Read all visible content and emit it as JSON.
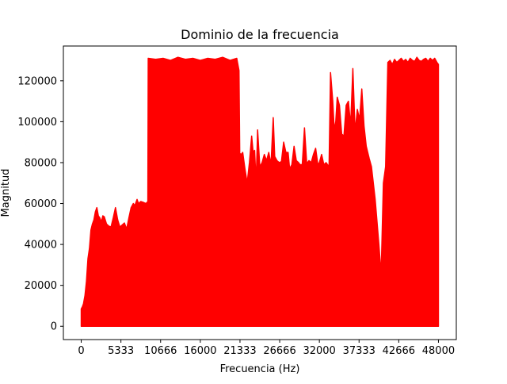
{
  "chart_data": {
    "type": "area",
    "title": "Dominio de la frecuencia",
    "xlabel": "Frecuencia (Hz)",
    "ylabel": "Magnitud",
    "xlim": [
      -2400,
      50400
    ],
    "ylim": [
      -6500,
      137000
    ],
    "xticks": [
      0,
      5333,
      10666,
      16000,
      21333,
      26666,
      32000,
      37333,
      42666,
      48000
    ],
    "xtick_labels": [
      "0",
      "5333",
      "10666",
      "16000",
      "21333",
      "26666",
      "32000",
      "37333",
      "42666",
      "48000"
    ],
    "yticks": [
      0,
      20000,
      40000,
      60000,
      80000,
      100000,
      120000
    ],
    "ytick_labels": [
      "0",
      "20000",
      "40000",
      "60000",
      "80000",
      "100000",
      "120000"
    ],
    "grid": false,
    "legend": "none",
    "series": [
      {
        "color": "#ff0000",
        "x": [
          0,
          150,
          300,
          500,
          700,
          900,
          1100,
          1300,
          1500,
          1700,
          1900,
          2100,
          2300,
          2500,
          2700,
          2900,
          3100,
          3400,
          3700,
          4000,
          4300,
          4600,
          4900,
          5200,
          5500,
          5800,
          6100,
          6400,
          6700,
          7000,
          7200,
          7500,
          7700,
          8000,
          8400,
          8700,
          8950,
          9000,
          10000,
          11000,
          12000,
          13000,
          14000,
          15000,
          16000,
          17000,
          18000,
          19000,
          20000,
          20900,
          21200,
          21300,
          21500,
          21700,
          22000,
          22300,
          22600,
          22900,
          23100,
          23300,
          23500,
          23700,
          24000,
          24300,
          24600,
          24900,
          25200,
          25500,
          25800,
          26000,
          26300,
          26600,
          26900,
          27200,
          27500,
          27800,
          28000,
          28300,
          28600,
          28900,
          29200,
          29400,
          29700,
          30000,
          30300,
          30600,
          30900,
          31200,
          31500,
          31800,
          32000,
          32300,
          32600,
          32900,
          33300,
          33500,
          33800,
          34000,
          34200,
          34400,
          34700,
          35000,
          35300,
          35600,
          35900,
          36200,
          36500,
          36800,
          37100,
          37400,
          37700,
          38000,
          38300,
          38700,
          39000,
          39500,
          40000,
          40300,
          40600,
          40900,
          41200,
          41500,
          41800,
          42100,
          42400,
          42700,
          43000,
          43300,
          43600,
          43900,
          44200,
          44500,
          44800,
          45100,
          45400,
          45700,
          46000,
          46300,
          46600,
          46900,
          47200,
          47500,
          47800,
          48000
        ],
        "values": [
          8500,
          9500,
          11000,
          15000,
          22000,
          33000,
          38000,
          47000,
          50000,
          52000,
          56000,
          58000,
          54000,
          53000,
          51000,
          54000,
          53500,
          50000,
          49000,
          48500,
          53000,
          58000,
          52000,
          48500,
          49500,
          50500,
          47500,
          53000,
          58000,
          60000,
          59000,
          62000,
          60000,
          61000,
          60500,
          60000,
          61000,
          131000,
          130500,
          131000,
          130000,
          131500,
          130500,
          131000,
          130000,
          131000,
          130500,
          131500,
          130000,
          131000,
          125000,
          84500,
          84000,
          85000,
          77000,
          70000,
          80000,
          93000,
          85000,
          86000,
          70000,
          96000,
          78000,
          80000,
          84000,
          81000,
          85000,
          79000,
          102000,
          83000,
          81000,
          80000,
          80500,
          90000,
          85000,
          85000,
          77000,
          79000,
          88000,
          81000,
          80000,
          79000,
          79000,
          97000,
          79500,
          81000,
          80000,
          84000,
          87000,
          79000,
          80000,
          84000,
          79000,
          80000,
          78000,
          124000,
          110000,
          96000,
          100000,
          112000,
          108000,
          94000,
          93000,
          108000,
          110000,
          98000,
          126000,
          95000,
          106000,
          101000,
          116000,
          98000,
          88000,
          82000,
          78000,
          62000,
          40000,
          25000,
          70000,
          78000,
          129000,
          130000,
          128000,
          130500,
          129000,
          130000,
          131000,
          129500,
          130500,
          129000,
          131000,
          130000,
          129500,
          131500,
          130000,
          129500,
          130500,
          131000,
          129500,
          131000,
          130000,
          131000,
          129000,
          128000
        ]
      }
    ]
  }
}
